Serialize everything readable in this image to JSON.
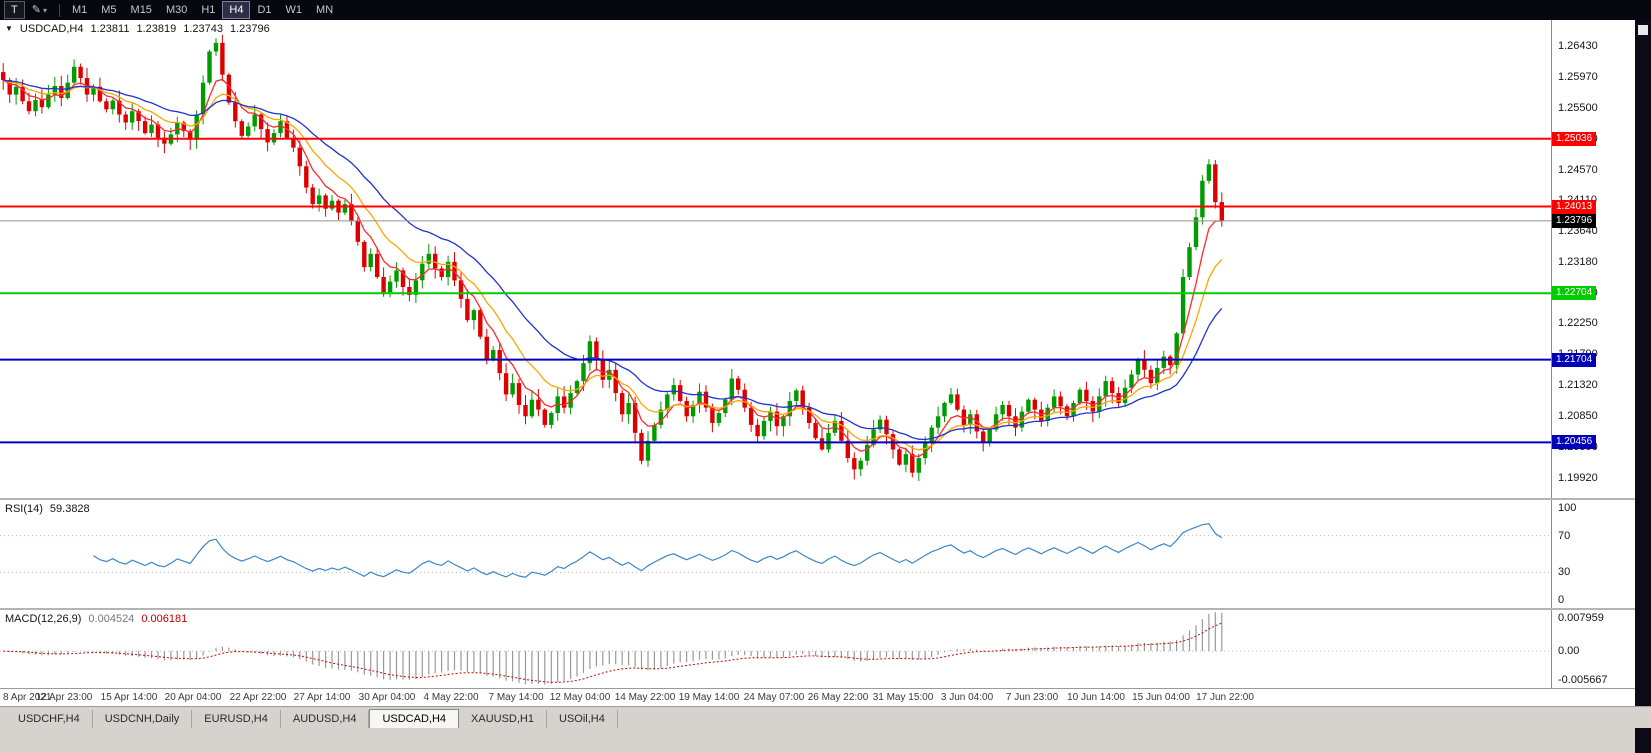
{
  "toolbar": {
    "cursor_tool_label": "T",
    "objects_tool_icon": "✎",
    "dropdown_glyph": "▾",
    "timeframes": [
      "M1",
      "M5",
      "M15",
      "M30",
      "H1",
      "H4",
      "D1",
      "W1",
      "MN"
    ],
    "active_timeframe": "H4"
  },
  "chart_header": {
    "one_click_glyph": "▼",
    "symbol_period": "USDCAD,H4",
    "quote_open": "1.23811",
    "quote_high": "1.23819",
    "quote_low": "1.23743",
    "quote_close": "1.23796"
  },
  "chart_data": {
    "type": "candlestick",
    "symbol": "USDCAD",
    "timeframe": "H4",
    "title": "USDCAD,H4 1.23811 1.23819 1.23743 1.23796",
    "up_color": "#009B00",
    "down_color": "#DE0000",
    "current_price": "1.23796",
    "y_axis_ticks": [
      "1.26430",
      "1.25970",
      "1.25500",
      "1.25030",
      "1.24570",
      "1.24110",
      "1.23640",
      "1.23180",
      "1.22710",
      "1.22250",
      "1.21790",
      "1.21320",
      "1.20850",
      "1.20390",
      "1.19920"
    ],
    "x_labels": [
      "8 Apr 2021",
      "12 Apr 23:00",
      "15 Apr 14:00",
      "20 Apr 04:00",
      "22 Apr 22:00",
      "27 Apr 14:00",
      "30 Apr 04:00",
      "4 May 22:00",
      "7 May 14:00",
      "12 May 04:00",
      "14 May 22:00",
      "19 May 14:00",
      "24 May 07:00",
      "26 May 22:00",
      "31 May 15:00",
      "3 Jun 04:00",
      "7 Jun 23:00",
      "10 Jun 14:00",
      "15 Jun 04:00",
      "17 Jun 22:00"
    ],
    "horizontal_lines": [
      {
        "price": "1.25036",
        "color": "#FF0000"
      },
      {
        "price": "1.24013",
        "color": "#FF0000"
      },
      {
        "price": "1.22704",
        "color": "#00CC00"
      },
      {
        "price": "1.21704",
        "color": "#0000BB"
      },
      {
        "price": "1.20456",
        "color": "#0000BB"
      }
    ],
    "moving_averages": [
      {
        "period": 6,
        "color": "#FF2A2A"
      },
      {
        "period": 12,
        "color": "#FFA500"
      },
      {
        "period": 24,
        "color": "#2233CC"
      }
    ],
    "close_series": [
      1.2592,
      1.257,
      1.2582,
      1.256,
      1.2545,
      1.2562,
      1.2551,
      1.257,
      1.2583,
      1.2565,
      1.2588,
      1.2612,
      1.2595,
      1.257,
      1.2582,
      1.256,
      1.2548,
      1.2561,
      1.254,
      1.2528,
      1.2545,
      1.253,
      1.2512,
      1.2525,
      1.2505,
      1.2496,
      1.251,
      1.2528,
      1.2515,
      1.2502,
      1.254,
      1.2588,
      1.2635,
      1.2648,
      1.26,
      1.2558,
      1.253,
      1.2508,
      1.2522,
      1.254,
      1.2518,
      1.2498,
      1.2512,
      1.253,
      1.2505,
      1.249,
      1.2462,
      1.243,
      1.2405,
      1.2418,
      1.2398,
      1.241,
      1.2392,
      1.2405,
      1.238,
      1.2348,
      1.231,
      1.233,
      1.2295,
      1.2272,
      1.2288,
      1.2305,
      1.228,
      1.2268,
      1.229,
      1.2315,
      1.233,
      1.2308,
      1.2295,
      1.2318,
      1.229,
      1.2262,
      1.223,
      1.2245,
      1.2205,
      1.217,
      1.2185,
      1.215,
      1.2118,
      1.2135,
      1.2102,
      1.2085,
      1.211,
      1.2095,
      1.2072,
      1.209,
      1.2115,
      1.2098,
      1.212,
      1.2138,
      1.2165,
      1.2198,
      1.2172,
      1.214,
      1.2155,
      1.212,
      1.2088,
      1.2105,
      1.206,
      1.2018,
      1.2048,
      1.2072,
      1.2095,
      1.2118,
      1.2132,
      1.2108,
      1.2085,
      1.2102,
      1.2122,
      1.2098,
      1.2075,
      1.209,
      1.211,
      1.2142,
      1.2125,
      1.2098,
      1.2072,
      1.2055,
      1.2078,
      1.2092,
      1.207,
      1.2085,
      1.2108,
      1.2124,
      1.2098,
      1.2075,
      1.2052,
      1.2035,
      1.206,
      1.2078,
      1.2048,
      1.2022,
      1.2005,
      1.2018,
      1.2042,
      1.2065,
      1.208,
      1.2058,
      1.2035,
      1.2012,
      1.2028,
      1.2,
      1.2022,
      1.2045,
      1.2068,
      1.2085,
      1.2105,
      1.2118,
      1.2095,
      1.2072,
      1.2088,
      1.2062,
      1.2045,
      1.2065,
      1.2088,
      1.2102,
      1.2085,
      1.2068,
      1.2092,
      1.211,
      1.2095,
      1.2078,
      1.2098,
      1.2115,
      1.21,
      1.2085,
      1.2105,
      1.2125,
      1.2108,
      1.2092,
      1.2115,
      1.2138,
      1.212,
      1.2105,
      1.2128,
      1.2148,
      1.217,
      1.2155,
      1.2135,
      1.2158,
      1.2175,
      1.2162,
      1.221,
      1.2295,
      1.234,
      1.2385,
      1.244,
      1.2465,
      1.2408,
      1.23796
    ],
    "indicators": {
      "rsi": {
        "name": "RSI(14)",
        "current_value": "59.3828",
        "period": 14,
        "levels": [
          30,
          70
        ],
        "scale": [
          0,
          100
        ],
        "axis_labels": [
          "100",
          "70",
          "30",
          "0"
        ],
        "line_color": "#3E86C6"
      },
      "macd": {
        "name": "MACD(12,26,9)",
        "main_value": "0.004524",
        "signal_value": "0.006181",
        "fast": 12,
        "slow": 26,
        "signal": 9,
        "axis_labels": [
          "0.007959",
          "0.00",
          "-0.005667"
        ],
        "histogram_color": "#999999",
        "signal_color": "#D00000"
      }
    }
  },
  "tabs": {
    "items": [
      {
        "label": "USDCHF,H4",
        "active": false
      },
      {
        "label": "USDCNH,Daily",
        "active": false
      },
      {
        "label": "EURUSD,H4",
        "active": false
      },
      {
        "label": "AUDUSD,H4",
        "active": false
      },
      {
        "label": "USDCAD,H4",
        "active": true
      },
      {
        "label": "XAUUSD,H1",
        "active": false
      },
      {
        "label": "USOil,H4",
        "active": false
      }
    ]
  }
}
